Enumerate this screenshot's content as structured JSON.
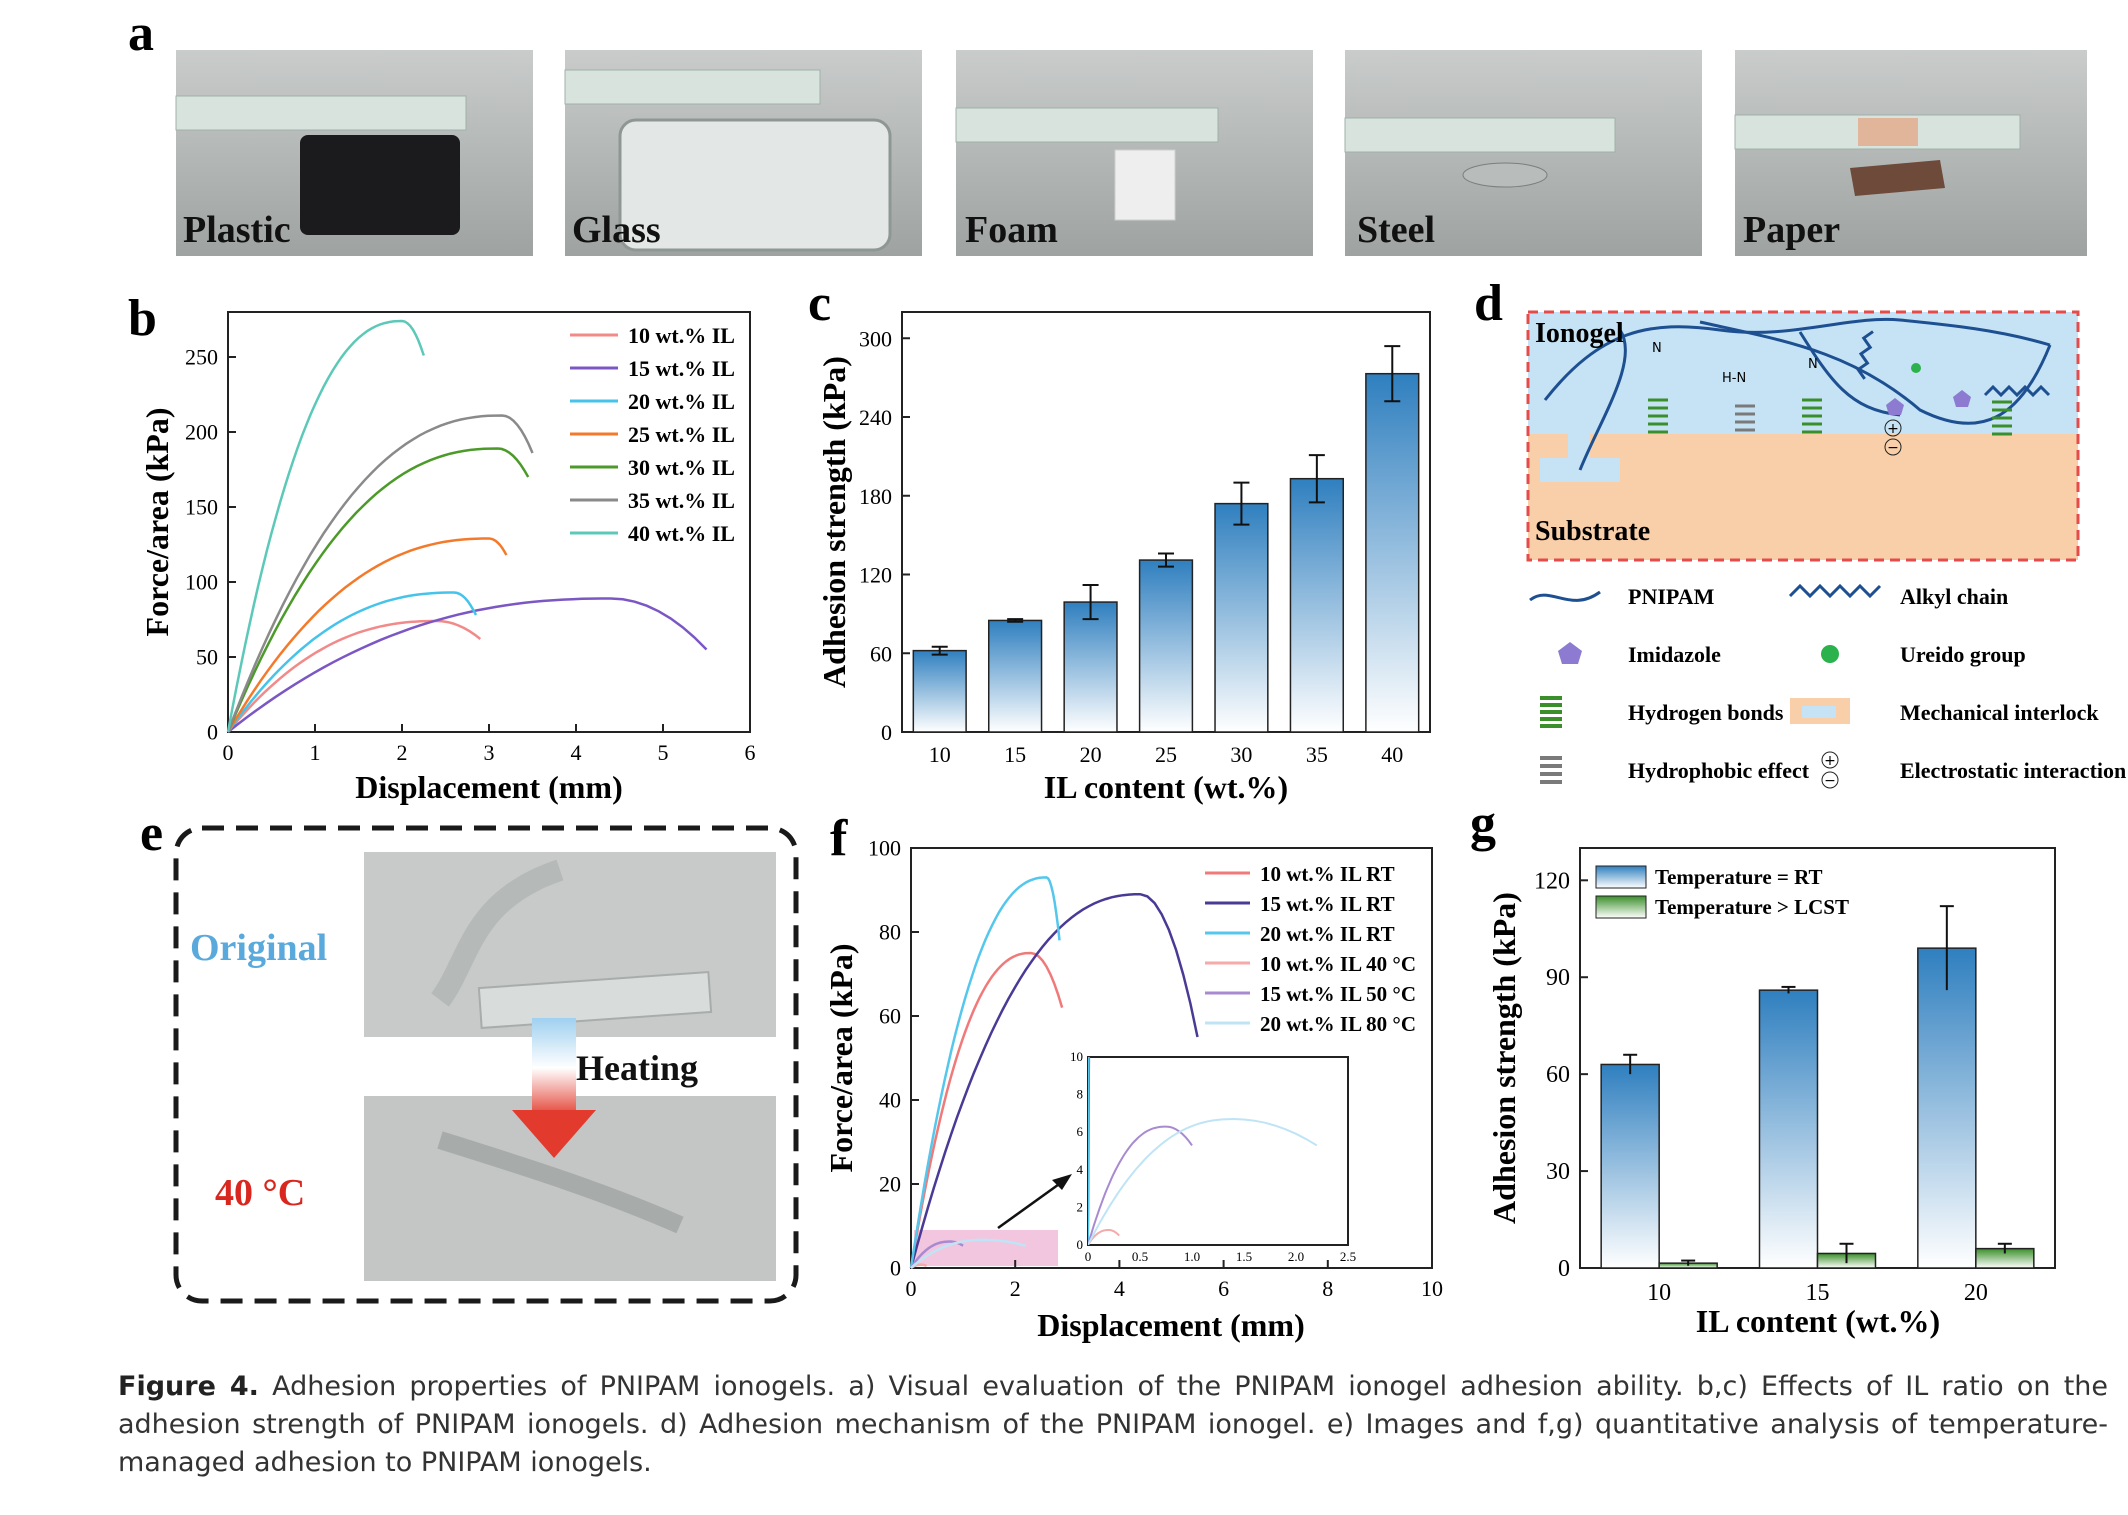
{
  "panel_letters": [
    "a",
    "b",
    "c",
    "d",
    "e",
    "f",
    "g"
  ],
  "photos_a": [
    "Plastic",
    "Glass",
    "Foam",
    "Steel",
    "Paper"
  ],
  "photo_e": {
    "original": "Original",
    "heating": "Heating",
    "hot": "40 °C"
  },
  "colors": {
    "c10": "#f28a8a",
    "c15": "#7b57c4",
    "c20": "#45c3ea",
    "c25": "#f47a2b",
    "c30": "#4c9a2a",
    "c35": "#8a8a8a",
    "c40": "#5cc9b8",
    "bar_blue": "#2f7fbf",
    "bar_green": "#3a8f2a",
    "text_blue": "#5aa9dc",
    "text_red": "#d9271f"
  },
  "panel_d": {
    "ionogel": "Ionogel",
    "substrate": "Substrate",
    "legend": [
      {
        "icon": "wave-line",
        "label": "PNIPAM"
      },
      {
        "icon": "zigzag-line",
        "label": "Alkyl chain"
      },
      {
        "icon": "pentagon",
        "label": "Imidazole"
      },
      {
        "icon": "green-dot",
        "label": "Ureido group"
      },
      {
        "icon": "green-bars",
        "label": "Hydrogen bonds"
      },
      {
        "icon": "interlock",
        "label": "Mechanical interlock"
      },
      {
        "icon": "gray-bars",
        "label": "Hydrophobic effect"
      },
      {
        "icon": "plus-minus",
        "label": "Electrostatic interaction"
      }
    ]
  },
  "caption": {
    "label": "Figure 4.",
    "text": "Adhesion properties of PNIPAM ionogels. a) Visual evaluation of the PNIPAM ionogel adhesion ability. b,c) Effects of IL ratio on the adhesion strength of PNIPAM ionogels. d) Adhesion mechanism of the PNIPAM ionogel. e) Images and f,g) quantitative analysis of temperature-managed adhesion to PNIPAM ionogels."
  },
  "chart_data": [
    {
      "id": "b",
      "type": "line",
      "xlabel": "Displacement (mm)",
      "ylabel": "Force/area (kPa)",
      "xlim": [
        0,
        6
      ],
      "ylim": [
        0,
        280
      ],
      "xticks": [
        0,
        1,
        2,
        3,
        4,
        5,
        6
      ],
      "yticks": [
        0,
        50,
        100,
        150,
        200,
        250
      ],
      "legend_position": "top-right",
      "series": [
        {
          "name": "10 wt.% IL",
          "color": "#f28a8a",
          "peak_x": 2.4,
          "peak_y": 74,
          "end_x": 2.9,
          "end_y": 62
        },
        {
          "name": "15 wt.% IL",
          "color": "#7b57c4",
          "peak_x": 4.4,
          "peak_y": 89,
          "end_x": 5.5,
          "end_y": 55
        },
        {
          "name": "20 wt.% IL",
          "color": "#45c3ea",
          "peak_x": 2.6,
          "peak_y": 93,
          "end_x": 2.85,
          "end_y": 78
        },
        {
          "name": "25 wt.% IL",
          "color": "#f47a2b",
          "peak_x": 3.0,
          "peak_y": 129,
          "end_x": 3.2,
          "end_y": 118
        },
        {
          "name": "30 wt.% IL",
          "color": "#4c9a2a",
          "peak_x": 3.1,
          "peak_y": 189,
          "end_x": 3.45,
          "end_y": 170
        },
        {
          "name": "35 wt.% IL",
          "color": "#8a8a8a",
          "peak_x": 3.15,
          "peak_y": 211,
          "end_x": 3.5,
          "end_y": 186
        },
        {
          "name": "40 wt.% IL",
          "color": "#5cc9b8",
          "peak_x": 2.0,
          "peak_y": 274,
          "end_x": 2.25,
          "end_y": 251
        }
      ]
    },
    {
      "id": "c",
      "type": "bar",
      "xlabel": "IL content (wt.%)",
      "ylabel": "Adhesion strength (kPa)",
      "ylim": [
        0,
        320
      ],
      "yticks": [
        0,
        60,
        120,
        180,
        240,
        300
      ],
      "categories": [
        "10",
        "15",
        "20",
        "25",
        "30",
        "35",
        "40"
      ],
      "values": [
        62,
        85,
        99,
        131,
        174,
        193,
        273
      ],
      "errors": [
        3,
        1,
        13,
        5,
        16,
        18,
        21
      ]
    },
    {
      "id": "f",
      "type": "line",
      "xlabel": "Displacement (mm)",
      "ylabel": "Force/area (kPa)",
      "xlim": [
        0,
        10
      ],
      "ylim": [
        0,
        100
      ],
      "xticks": [
        0,
        2,
        4,
        6,
        8,
        10
      ],
      "yticks": [
        0,
        20,
        40,
        60,
        80,
        100
      ],
      "legend_position": "top-right",
      "series": [
        {
          "name": "10 wt.% IL RT",
          "color": "#f07a7a",
          "peak_x": 2.3,
          "peak_y": 75,
          "end_x": 2.9,
          "end_y": 62
        },
        {
          "name": "15 wt.% IL RT",
          "color": "#4a3a96",
          "peak_x": 4.4,
          "peak_y": 89,
          "end_x": 5.5,
          "end_y": 55
        },
        {
          "name": "20 wt.% IL RT",
          "color": "#55c7ec",
          "peak_x": 2.6,
          "peak_y": 93,
          "end_x": 2.85,
          "end_y": 78
        },
        {
          "name": "10 wt.% IL 40 °C",
          "color": "#f6a9a9",
          "peak_x": 0.2,
          "peak_y": 0.8,
          "end_x": 0.3,
          "end_y": 0.5
        },
        {
          "name": "15 wt.% IL 50 °C",
          "color": "#a88ad0",
          "peak_x": 0.75,
          "peak_y": 6.3,
          "end_x": 1.0,
          "end_y": 5.3
        },
        {
          "name": "20 wt.% IL 80 °C",
          "color": "#bfe4f6",
          "peak_x": 1.4,
          "peak_y": 6.7,
          "end_x": 2.2,
          "end_y": 5.3
        }
      ],
      "inset": {
        "xlim": [
          0,
          2.5
        ],
        "ylim": [
          0,
          10
        ],
        "xticks": [
          0,
          0.5,
          1.0,
          1.5,
          2.0,
          2.5
        ],
        "yticks": [
          0,
          2,
          4,
          6,
          8,
          10
        ]
      }
    },
    {
      "id": "g",
      "type": "bar",
      "xlabel": "IL content (wt.%)",
      "ylabel": "Adhesion strength (kPa)",
      "ylim": [
        0,
        130
      ],
      "yticks": [
        0,
        30,
        60,
        90,
        120
      ],
      "categories": [
        "10",
        "15",
        "20"
      ],
      "legend_position": "top-left",
      "series": [
        {
          "name": "Temperature = RT",
          "color": "#2f7fbf",
          "values": [
            63,
            86,
            99
          ],
          "errors": [
            3,
            1,
            13
          ]
        },
        {
          "name": "Temperature > LCST",
          "color": "#3a8f2a",
          "values": [
            1.5,
            4.5,
            6
          ],
          "errors": [
            0.8,
            3,
            1.5
          ]
        }
      ]
    }
  ]
}
